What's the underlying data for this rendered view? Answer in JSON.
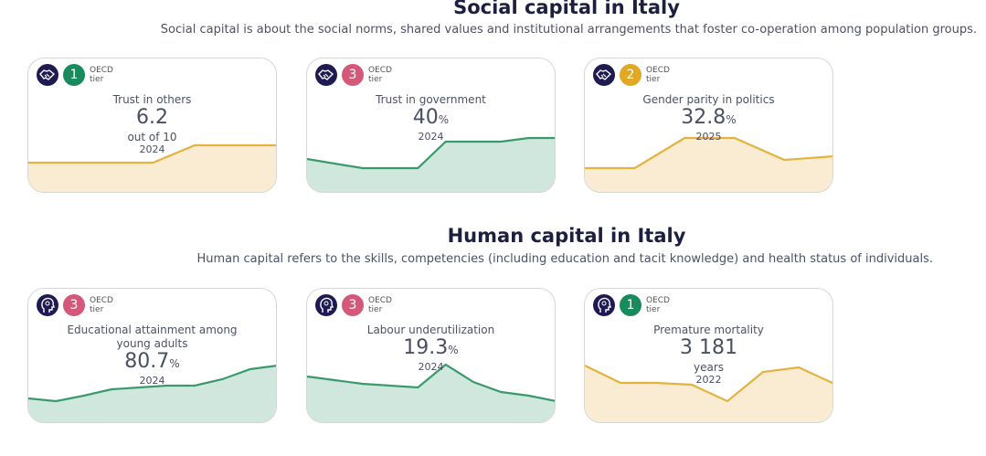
{
  "sections": [
    {
      "title": "Social capital in Italy",
      "description": "Social capital is about the social norms, shared values and institutional arrangements that foster co-operation among population groups.",
      "cards": [
        {
          "icon": "handshake-icon",
          "tier": "1",
          "tier_color": "#198a5c",
          "tier_label": [
            "OECD",
            "tier"
          ],
          "label": "Trust in others",
          "value": "6.2",
          "suffix": "",
          "unit": "out of 10",
          "year": "2024",
          "theme": "gold",
          "series": [
            34,
            34,
            34,
            34,
            53,
            53,
            53
          ]
        },
        {
          "icon": "handshake-icon",
          "tier": "3",
          "tier_color": "#d4587a",
          "tier_label": [
            "OECD",
            "tier"
          ],
          "label": "Trust in government",
          "value": "40",
          "suffix": "%",
          "unit": "",
          "year": "2024",
          "theme": "green",
          "series": [
            38,
            33,
            28,
            28,
            28,
            57,
            57,
            57,
            61,
            61
          ]
        },
        {
          "icon": "handshake-icon",
          "tier": "2",
          "tier_color": "#e0a825",
          "tier_label": [
            "OECD",
            "tier"
          ],
          "label": "Gender parity in politics",
          "value": "32.8",
          "suffix": "%",
          "unit": "",
          "year": "2025",
          "theme": "gold",
          "series": [
            28,
            28,
            61,
            61,
            37,
            41
          ]
        }
      ]
    },
    {
      "title": "Human capital in Italy",
      "description": "Human capital refers to the skills, competencies (including education and tacit knowledge) and health status of individuals.",
      "cards": [
        {
          "icon": "head-icon",
          "tier": "3",
          "tier_color": "#d4587a",
          "tier_label": [
            "OECD",
            "tier"
          ],
          "label": "Educational attainment among young adults",
          "value": "80.7",
          "suffix": "%",
          "unit": "",
          "year": "2024",
          "theme": "green",
          "series": [
            28,
            25,
            31,
            38,
            40,
            42,
            42,
            49,
            60,
            64
          ]
        },
        {
          "icon": "head-icon",
          "tier": "3",
          "tier_color": "#d4587a",
          "tier_label": [
            "OECD",
            "tier"
          ],
          "label": "Labour underutilization",
          "value": "19.3",
          "suffix": "%",
          "unit": "",
          "year": "2024",
          "theme": "green",
          "series": [
            52,
            48,
            44,
            42,
            40,
            65,
            46,
            35,
            31,
            25
          ]
        },
        {
          "icon": "head-icon",
          "tier": "1",
          "tier_color": "#198a5c",
          "tier_label": [
            "OECD",
            "tier"
          ],
          "label": "Premature mortality",
          "value": "3 181",
          "suffix": "",
          "unit": "years",
          "year": "2022",
          "theme": "gold",
          "series": [
            64,
            45,
            45,
            43,
            25,
            57,
            62,
            44
          ]
        }
      ]
    }
  ],
  "themes": {
    "gold": {
      "line": "#e2b33e",
      "fill": "#f9ecd2"
    },
    "green": {
      "line": "#3a9a6c",
      "fill": "#d0e7dd"
    }
  }
}
